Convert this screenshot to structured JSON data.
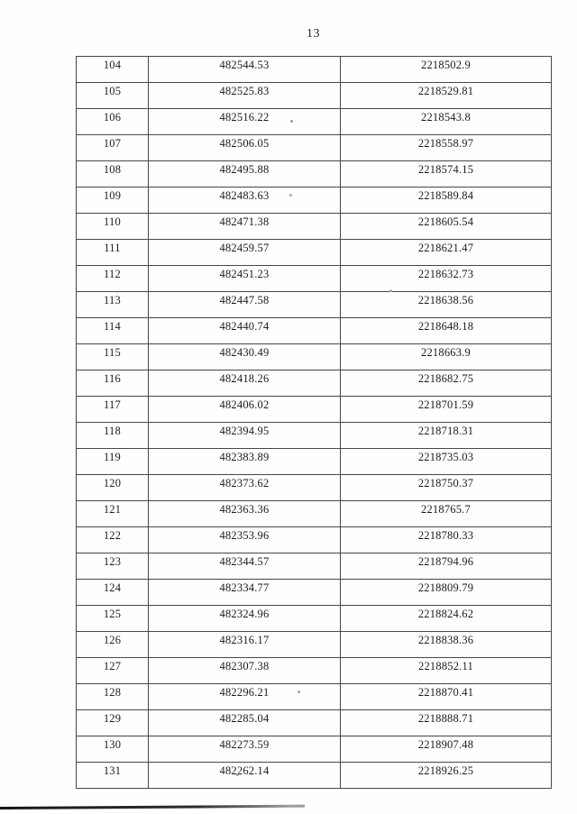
{
  "page": {
    "number": "13"
  },
  "table": {
    "rows": [
      [
        "104",
        "482544.53",
        "2218502.9"
      ],
      [
        "105",
        "482525.83",
        "2218529.81"
      ],
      [
        "106",
        "482516.22",
        "2218543.8"
      ],
      [
        "107",
        "482506.05",
        "2218558.97"
      ],
      [
        "108",
        "482495.88",
        "2218574.15"
      ],
      [
        "109",
        "482483.63",
        "2218589.84"
      ],
      [
        "110",
        "482471.38",
        "2218605.54"
      ],
      [
        "111",
        "482459.57",
        "2218621.47"
      ],
      [
        "112",
        "482451.23",
        "2218632.73"
      ],
      [
        "113",
        "482447.58",
        "2218638.56"
      ],
      [
        "114",
        "482440.74",
        "2218648.18"
      ],
      [
        "115",
        "482430.49",
        "2218663.9"
      ],
      [
        "116",
        "482418.26",
        "2218682.75"
      ],
      [
        "117",
        "482406.02",
        "2218701.59"
      ],
      [
        "118",
        "482394.95",
        "2218718.31"
      ],
      [
        "119",
        "482383.89",
        "2218735.03"
      ],
      [
        "120",
        "482373.62",
        "2218750.37"
      ],
      [
        "121",
        "482363.36",
        "2218765.7"
      ],
      [
        "122",
        "482353.96",
        "2218780.33"
      ],
      [
        "123",
        "482344.57",
        "2218794.96"
      ],
      [
        "124",
        "482334.77",
        "2218809.79"
      ],
      [
        "125",
        "482324.96",
        "2218824.62"
      ],
      [
        "126",
        "482316.17",
        "2218838.36"
      ],
      [
        "127",
        "482307.38",
        "2218852.11"
      ],
      [
        "128",
        "482296.21",
        "2218870.41"
      ],
      [
        "129",
        "482285.04",
        "2218888.71"
      ],
      [
        "130",
        "482273.59",
        "2218907.48"
      ],
      [
        "131",
        "482262.14",
        "2218926.25"
      ]
    ]
  }
}
